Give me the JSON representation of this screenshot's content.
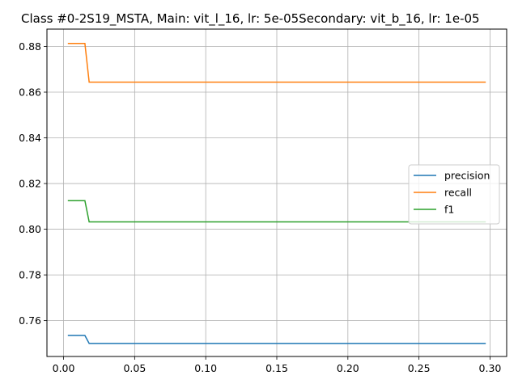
{
  "chart_data": {
    "type": "line",
    "title": "Class #0-2S19_MSTA, Main: vit_l_16, lr: 5e-05Secondary: vit_b_16, lr: 1e-05",
    "xlabel": "",
    "ylabel": "",
    "xlim": [
      -0.0117,
      0.3117
    ],
    "ylim": [
      0.7443,
      0.8876
    ],
    "xticks": [
      0.0,
      0.05,
      0.1,
      0.15,
      0.2,
      0.25,
      0.3
    ],
    "xtick_labels": [
      "0.00",
      "0.05",
      "0.10",
      "0.15",
      "0.20",
      "0.25",
      "0.30"
    ],
    "yticks": [
      0.76,
      0.78,
      0.8,
      0.82,
      0.84,
      0.86,
      0.88
    ],
    "ytick_labels": [
      "0.76",
      "0.78",
      "0.80",
      "0.82",
      "0.84",
      "0.86",
      "0.88"
    ],
    "grid": true,
    "legend_position": "center-right",
    "series": [
      {
        "name": "precision",
        "color": "#1f77b4",
        "x": [
          0.003,
          0.015,
          0.018,
          0.297
        ],
        "y": [
          0.7535,
          0.7535,
          0.75,
          0.75
        ]
      },
      {
        "name": "recall",
        "color": "#ff7f0e",
        "x": [
          0.003,
          0.015,
          0.018,
          0.297
        ],
        "y": [
          0.8813,
          0.8813,
          0.8644,
          0.8644
        ]
      },
      {
        "name": "f1",
        "color": "#2ca02c",
        "x": [
          0.003,
          0.015,
          0.018,
          0.297
        ],
        "y": [
          0.8125,
          0.8125,
          0.8032,
          0.8032
        ]
      }
    ]
  }
}
